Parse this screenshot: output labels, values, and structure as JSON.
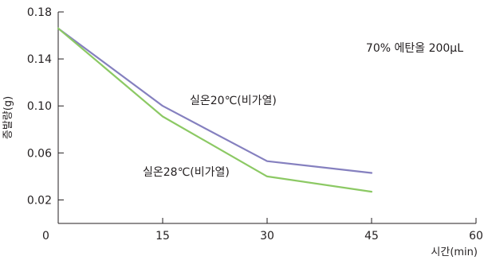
{
  "chart_data": {
    "type": "line",
    "title": "",
    "annotation": "70% 에탄올 200μL",
    "xlabel": "시간(min)",
    "ylabel": "증발량(g)",
    "xlim": [
      0,
      60
    ],
    "ylim": [
      0,
      0.18
    ],
    "xticks": [
      "0",
      "15",
      "30",
      "45",
      "60"
    ],
    "yticks": [
      "0.02",
      "0.06",
      "0.10",
      "0.14",
      "0.18"
    ],
    "grid": false,
    "x": [
      0,
      15,
      30,
      45
    ],
    "series": [
      {
        "name": "실온20℃(비가열)",
        "values": [
          0.166,
          0.1,
          0.053,
          0.043
        ],
        "color": "#8580bf"
      },
      {
        "name": "실온28℃(비가열)",
        "values": [
          0.166,
          0.091,
          0.04,
          0.027
        ],
        "color": "#8cc964"
      }
    ]
  }
}
